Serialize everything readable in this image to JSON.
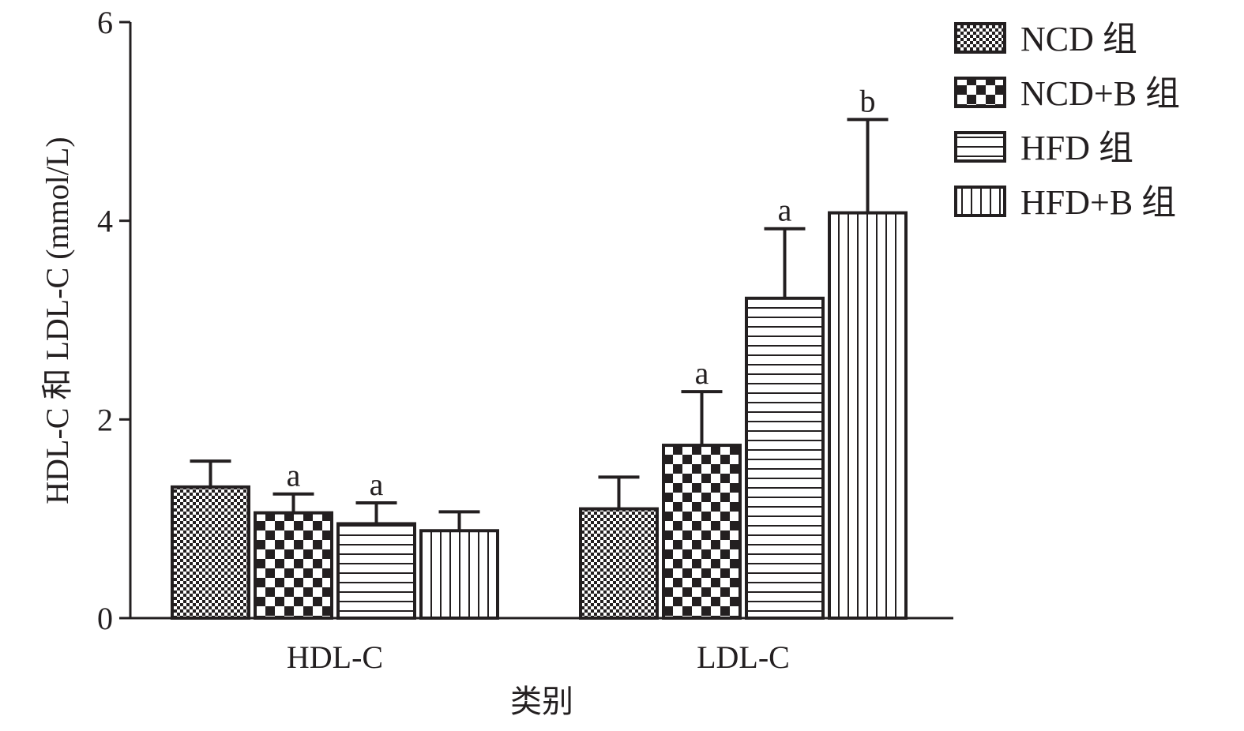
{
  "chart_data": {
    "type": "bar",
    "xlabel": "类别",
    "ylabel": "HDL-C 和 LDL-C (mmol/L)",
    "ylim": [
      0,
      6
    ],
    "yticks": [
      0,
      2,
      4,
      6
    ],
    "categories": [
      "HDL-C",
      "LDL-C"
    ],
    "series": [
      {
        "name": "NCD 组",
        "pattern": "fine-checker",
        "values": [
          1.32,
          1.1
        ],
        "errors": [
          0.26,
          0.32
        ],
        "labels": [
          "",
          ""
        ]
      },
      {
        "name": "NCD+B 组",
        "pattern": "coarse-checker",
        "values": [
          1.06,
          1.74
        ],
        "errors": [
          0.19,
          0.54
        ],
        "labels": [
          "a",
          "a"
        ]
      },
      {
        "name": "HFD 组",
        "pattern": "horizontal-lines",
        "values": [
          0.95,
          3.22
        ],
        "errors": [
          0.21,
          0.7
        ],
        "labels": [
          "a",
          "a"
        ]
      },
      {
        "name": "HFD+B 组",
        "pattern": "vertical-lines",
        "values": [
          0.88,
          4.08
        ],
        "errors": [
          0.19,
          0.94
        ],
        "labels": [
          "",
          "b"
        ]
      }
    ],
    "legend_position": "top-right",
    "grid": false,
    "colors": {
      "ink": "#231f20",
      "background": "#ffffff"
    }
  }
}
